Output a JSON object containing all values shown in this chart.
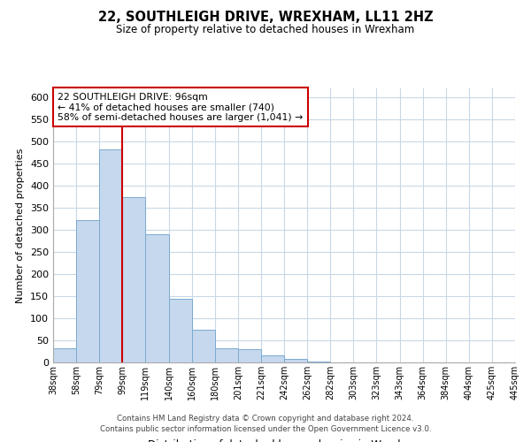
{
  "title": "22, SOUTHLEIGH DRIVE, WREXHAM, LL11 2HZ",
  "subtitle": "Size of property relative to detached houses in Wrexham",
  "xlabel": "Distribution of detached houses by size in Wrexham",
  "ylabel": "Number of detached properties",
  "bar_values": [
    32,
    322,
    482,
    375,
    291,
    145,
    75,
    32,
    30,
    17,
    8,
    2,
    1,
    1,
    1,
    0,
    0,
    0,
    0,
    1
  ],
  "bin_labels": [
    "38sqm",
    "58sqm",
    "79sqm",
    "99sqm",
    "119sqm",
    "140sqm",
    "160sqm",
    "180sqm",
    "201sqm",
    "221sqm",
    "242sqm",
    "262sqm",
    "282sqm",
    "303sqm",
    "323sqm",
    "343sqm",
    "364sqm",
    "384sqm",
    "404sqm",
    "425sqm",
    "445sqm"
  ],
  "bar_color": "#c5d8ee",
  "bar_edge_color": "#7aaad0",
  "vline_x": 3.0,
  "vline_color": "#cc0000",
  "ylim": [
    0,
    620
  ],
  "yticks": [
    0,
    50,
    100,
    150,
    200,
    250,
    300,
    350,
    400,
    450,
    500,
    550,
    600
  ],
  "annotation_title": "22 SOUTHLEIGH DRIVE: 96sqm",
  "annotation_line1": "← 41% of detached houses are smaller (740)",
  "annotation_line2": "58% of semi-detached houses are larger (1,041) →",
  "footer_line1": "Contains HM Land Registry data © Crown copyright and database right 2024.",
  "footer_line2": "Contains public sector information licensed under the Open Government Licence v3.0.",
  "bg_color": "#ffffff",
  "grid_color": "#c8d8e8"
}
